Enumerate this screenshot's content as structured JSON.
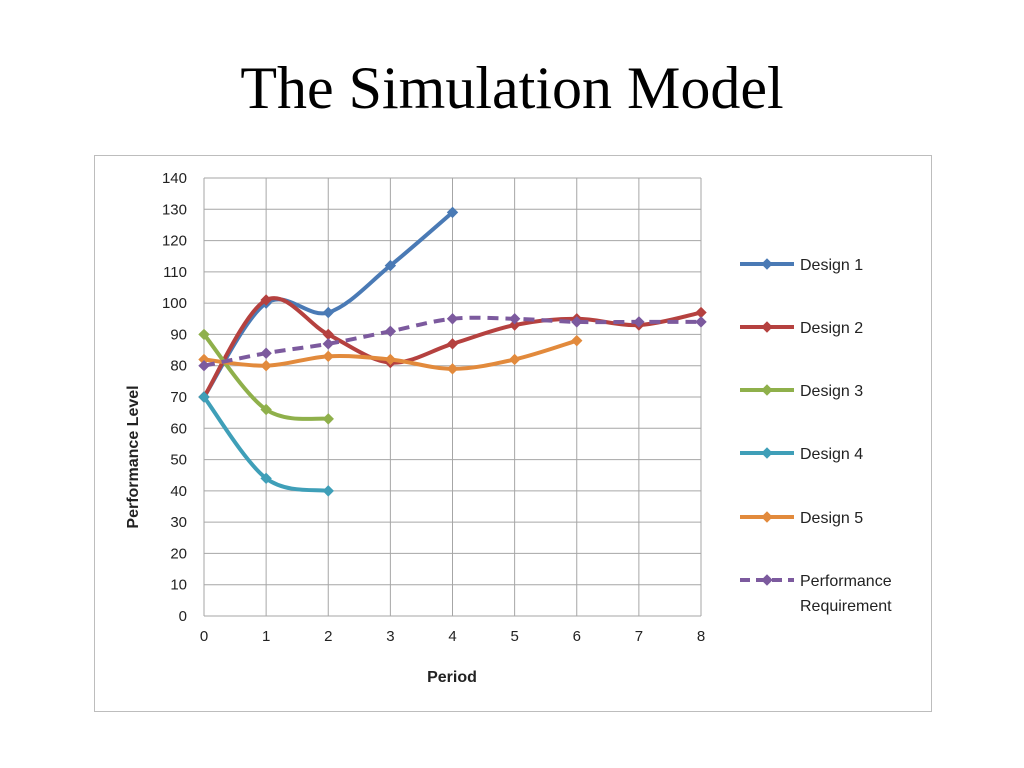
{
  "slide": {
    "title": "The Simulation Model"
  },
  "chart_data": {
    "type": "line",
    "title": "",
    "xlabel": "Period",
    "ylabel": "Performance Level",
    "xlim": [
      0,
      8
    ],
    "ylim": [
      0,
      140
    ],
    "x_ticks": [
      0,
      1,
      2,
      3,
      4,
      5,
      6,
      7,
      8
    ],
    "y_ticks": [
      0,
      10,
      20,
      30,
      40,
      50,
      60,
      70,
      80,
      90,
      100,
      110,
      120,
      130,
      140
    ],
    "grid": true,
    "legend_position": "right",
    "smooth": true,
    "series": [
      {
        "name": "Design 1",
        "color": "#4a7ab5",
        "dash": false,
        "x": [
          0,
          1,
          2,
          3,
          4
        ],
        "y": [
          70,
          100,
          97,
          112,
          129
        ]
      },
      {
        "name": "Design 2",
        "color": "#b5413f",
        "dash": false,
        "x": [
          0,
          1,
          2,
          3,
          4,
          5,
          6,
          7,
          8
        ],
        "y": [
          70,
          101,
          90,
          81,
          87,
          93,
          95,
          93,
          97
        ]
      },
      {
        "name": "Design 3",
        "color": "#8fb04b",
        "dash": false,
        "x": [
          0,
          1,
          2
        ],
        "y": [
          90,
          66,
          63
        ]
      },
      {
        "name": "Design 4",
        "color": "#3f9fb8",
        "dash": false,
        "x": [
          0,
          1,
          2
        ],
        "y": [
          70,
          44,
          40
        ]
      },
      {
        "name": "Design 5",
        "color": "#e28a3c",
        "dash": false,
        "x": [
          0,
          1,
          2,
          3,
          4,
          5,
          6
        ],
        "y": [
          82,
          80,
          83,
          82,
          79,
          82,
          88
        ]
      },
      {
        "name": "Performance Requirement",
        "color": "#7c5a9e",
        "dash": true,
        "x": [
          0,
          1,
          2,
          3,
          4,
          5,
          6,
          7,
          8
        ],
        "y": [
          80,
          84,
          87,
          91,
          95,
          95,
          94,
          94,
          94
        ]
      }
    ]
  }
}
